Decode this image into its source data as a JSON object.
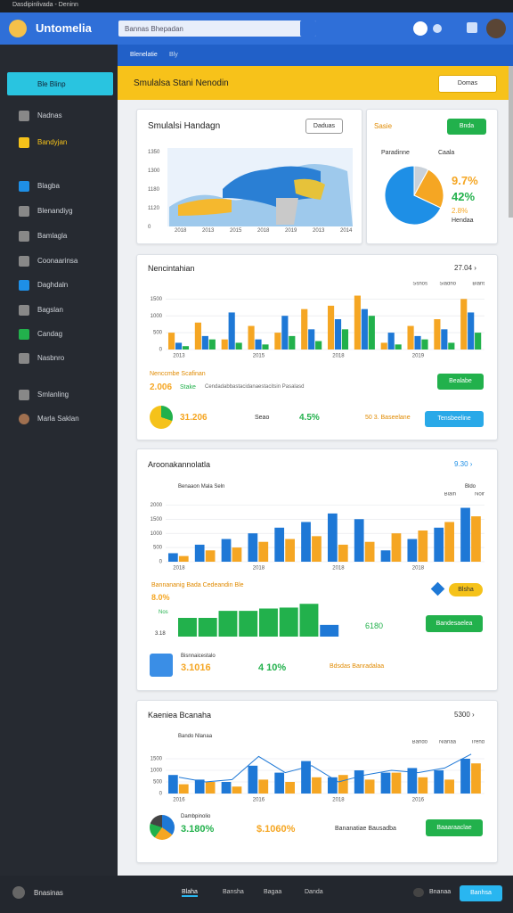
{
  "browser": {
    "tab": "Dasdipinlivada - Deninn"
  },
  "header": {
    "title": "Untomelia",
    "search": "Bannas Bhepadan"
  },
  "subnav": [
    "Blenelatie",
    "Bly"
  ],
  "sidebar": {
    "active": "Ble Blinp",
    "items": [
      "Nadnas",
      "Bandyjan",
      "Blagba",
      "Blenandiyg",
      "Bamlagla",
      "Coonaarinsa",
      "Daghdaln",
      "Bagslan",
      "Candag",
      "Nasbnro",
      "Smlanling",
      "Marla Saklan"
    ]
  },
  "banner": {
    "title": "Smulalsa Stani Nenodin",
    "button": "Domas"
  },
  "map_card": {
    "title": "Smulalsi Handagn",
    "button": "Daduas",
    "y_labels": [
      "1350",
      "1300",
      "1180",
      "1120",
      "0"
    ],
    "x_labels": [
      "2018",
      "2013",
      "2015",
      "2018",
      "2019",
      "2013",
      "2014"
    ]
  },
  "pie_card": {
    "title": "Sasie",
    "button": "Bnda",
    "legend": [
      "Paradinne",
      "Caala"
    ],
    "stats": [
      "9.7%",
      "42%",
      "2.8%",
      "Hendaa"
    ],
    "chart": {
      "type": "pie",
      "values": [
        68,
        24,
        8
      ],
      "colors": [
        "#1e8fe6",
        "#f5a623",
        "#c9d1d9"
      ]
    }
  },
  "card2": {
    "title": "Nencintahian",
    "link": "27.04 ›",
    "summary_title": "Nenccmbe Scafinan",
    "big": "2.006",
    "stake": "Stake",
    "desc": "Cendadabbastacidanaestacitsin Pasalasd",
    "button": "Bealabe",
    "pie_value": "31.206",
    "seao": "Seao",
    "pct": "4.5%",
    "base": "50 3. Baseelane",
    "button2": "Tensbeeline",
    "chart": {
      "type": "bar",
      "ylim": [
        0,
        1800
      ],
      "yticks": [
        0,
        500,
        1000,
        1500
      ],
      "categories": [
        "2013",
        null,
        null,
        "2015",
        null,
        null,
        "2018",
        null,
        null,
        "2019",
        null,
        null
      ],
      "series": [
        {
          "name": "Ssnos",
          "color": "#f5a623",
          "values": [
            500,
            800,
            300,
            700,
            500,
            1200,
            1300,
            1600,
            200,
            700,
            900,
            1500
          ]
        },
        {
          "name": "Sladno",
          "color": "#1e78d6",
          "values": [
            200,
            400,
            1100,
            300,
            1000,
            600,
            900,
            1200,
            500,
            400,
            600,
            1100
          ]
        },
        {
          "name": "Blant",
          "color": "#22b14c",
          "values": [
            100,
            300,
            200,
            150,
            400,
            250,
            600,
            1000,
            150,
            300,
            200,
            500
          ]
        }
      ]
    }
  },
  "card3": {
    "title": "Aroonakannolatla",
    "link": "9.30 ›",
    "chart_title": "Benaaon Mala Seln",
    "legend_extra": "Bldo",
    "row_title": "Bannananig Bada Cedeandin Ble",
    "row_pct": "8.0%",
    "row_small": "Nos",
    "row_val": "3.18",
    "row_num": "6180",
    "pill": "Blsha",
    "button": "Bandesaelea",
    "foot_title": "Bisnnaicestalo",
    "foot_big": "3.1016",
    "foot_pct": "4 10%",
    "foot_desc": "Bdsdas Banradalaa",
    "chart": {
      "type": "bar",
      "ylim": [
        0,
        2200
      ],
      "yticks": [
        0,
        500,
        1000,
        1500,
        2000
      ],
      "categories": [
        "2018",
        null,
        null,
        "2018",
        null,
        null,
        "2018",
        null,
        null,
        "2018",
        null,
        null
      ],
      "series": [
        {
          "name": "Blaln",
          "color": "#1e78d6",
          "values": [
            300,
            600,
            800,
            1000,
            1200,
            1400,
            1700,
            1500,
            400,
            800,
            1200,
            1900
          ]
        },
        {
          "name": "Nolr",
          "color": "#f5a623",
          "values": [
            200,
            400,
            500,
            700,
            800,
            900,
            600,
            700,
            1000,
            1100,
            1400,
            1600
          ]
        }
      ]
    },
    "mini": {
      "type": "bar",
      "ylim": [
        0,
        80
      ],
      "values": [
        40,
        40,
        55,
        55,
        60,
        62,
        70,
        25
      ],
      "colors": [
        "#22b14c",
        "#22b14c",
        "#22b14c",
        "#22b14c",
        "#22b14c",
        "#22b14c",
        "#22b14c",
        "#1e78d6"
      ]
    }
  },
  "card4": {
    "title": "Kaeniea Bcanaha",
    "link": "5300 ›",
    "chart_title": "Bando Nlanaa",
    "foot_title": "Dambpinolio",
    "foot_big": "3.180%",
    "foot_pct": "$.1060%",
    "foot_desc": "Bananatiae Bausadba",
    "button": "Baaaraaclae",
    "chart": {
      "type": "bar",
      "ylim": [
        0,
        2000
      ],
      "yticks": [
        0,
        500,
        1000,
        1500
      ],
      "categories": [
        "2016",
        null,
        null,
        "2016",
        null,
        null,
        "2018",
        null,
        null,
        "2016",
        null,
        null
      ],
      "series": [
        {
          "name": "Bando",
          "color": "#1e78d6",
          "values": [
            800,
            600,
            500,
            1200,
            900,
            1400,
            700,
            1000,
            900,
            1100,
            1000,
            1500
          ]
        },
        {
          "name": "Nlanaa",
          "color": "#f5a623",
          "values": [
            400,
            500,
            300,
            600,
            500,
            700,
            800,
            600,
            900,
            700,
            600,
            1300
          ]
        },
        {
          "name": "Trend",
          "type": "line",
          "color": "#1e78d6",
          "values": [
            700,
            500,
            600,
            1600,
            900,
            1200,
            500,
            800,
            1000,
            900,
            1100,
            1700
          ]
        }
      ]
    }
  },
  "bottom": {
    "user": "Bnasinas",
    "tabs": [
      "Blaha",
      "Bansha",
      "Bagaa",
      "Danda"
    ],
    "toggle": "Bnanaa",
    "button": "Banhsa"
  }
}
